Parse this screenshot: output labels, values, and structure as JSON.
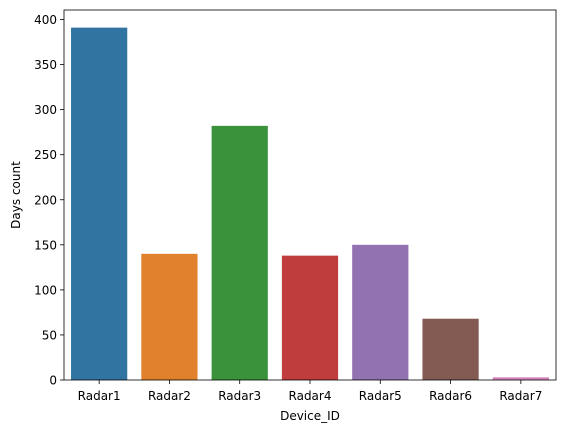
{
  "chart_data": {
    "type": "bar",
    "title": "",
    "xlabel": "Device_ID",
    "ylabel": "Days count",
    "categories": [
      "Radar1",
      "Radar2",
      "Radar3",
      "Radar4",
      "Radar5",
      "Radar6",
      "Radar7"
    ],
    "values": [
      391,
      140,
      282,
      138,
      150,
      68,
      3
    ],
    "colors": [
      "#3274a1",
      "#e1812c",
      "#3a923a",
      "#c03d3e",
      "#9372b2",
      "#845b53",
      "#d684bd"
    ],
    "yticks": [
      0,
      50,
      100,
      150,
      200,
      250,
      300,
      350,
      400
    ],
    "ylim": [
      0,
      410.55
    ],
    "grid": false,
    "legend": "none"
  }
}
